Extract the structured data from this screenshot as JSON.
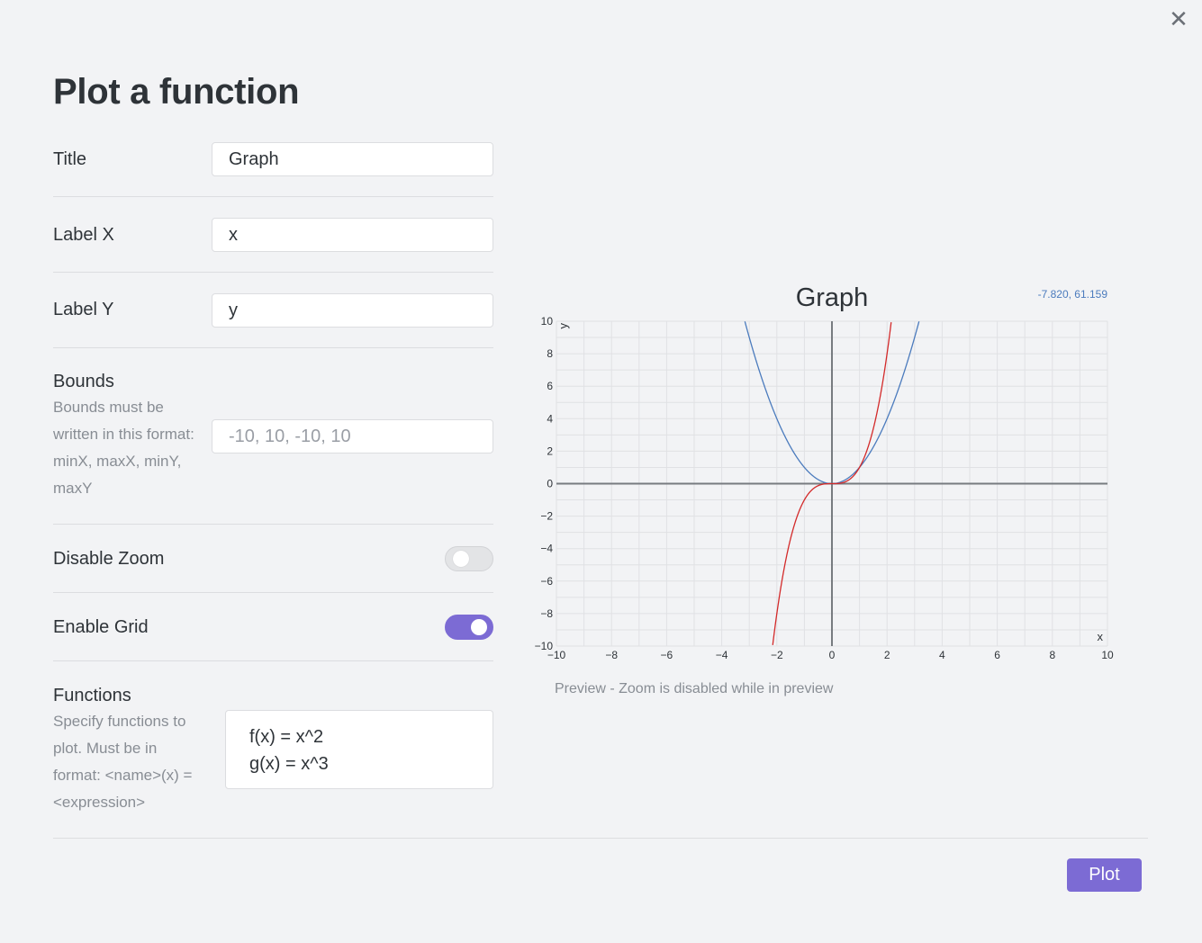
{
  "modal": {
    "title": "Plot a function"
  },
  "settings": {
    "title": {
      "name": "Title",
      "value": "Graph"
    },
    "label_x": {
      "name": "Label X",
      "value": "x"
    },
    "label_y": {
      "name": "Label Y",
      "value": "y"
    },
    "bounds": {
      "name": "Bounds",
      "description": "Bounds must be written in this format: minX, maxX, minY, maxY",
      "value": "",
      "placeholder": "-10, 10, -10, 10"
    },
    "disable_zoom": {
      "name": "Disable Zoom",
      "enabled": false
    },
    "enable_grid": {
      "name": "Enable Grid",
      "enabled": true
    },
    "functions": {
      "name": "Functions",
      "description": "Specify functions to plot. Must be in format: <name>(x) = <expression>",
      "value": "f(x) = x^2\ng(x) = x^3"
    }
  },
  "preview": {
    "coordinate_readout": "-7.820, 61.159",
    "caption": "Preview - Zoom is disabled while in preview"
  },
  "footer": {
    "plot_label": "Plot"
  },
  "colors": {
    "accent": "#7c6bd4",
    "series_f": "#4b7bbd",
    "series_g": "#d32a2a"
  },
  "chart_data": {
    "type": "line",
    "title": "Graph",
    "xlabel": "x",
    "ylabel": "y",
    "xlim": [
      -10,
      10
    ],
    "ylim": [
      -10,
      10
    ],
    "grid": true,
    "xticks": [
      -10,
      -8,
      -6,
      -4,
      -2,
      0,
      2,
      4,
      6,
      8,
      10
    ],
    "yticks": [
      -10,
      -8,
      -6,
      -4,
      -2,
      0,
      2,
      4,
      6,
      8,
      10
    ],
    "xtick_labels": [
      "−10",
      "−8",
      "−6",
      "−4",
      "−2",
      "0",
      "2",
      "4",
      "6",
      "8",
      "10"
    ],
    "ytick_labels": [
      "−10",
      "−8",
      "−6",
      "−4",
      "−2",
      "0",
      "2",
      "4",
      "6",
      "8",
      "10"
    ],
    "series": [
      {
        "expression": "x^2",
        "color": "#4b7bbd"
      },
      {
        "expression": "x^3",
        "color": "#d32a2a"
      }
    ]
  }
}
